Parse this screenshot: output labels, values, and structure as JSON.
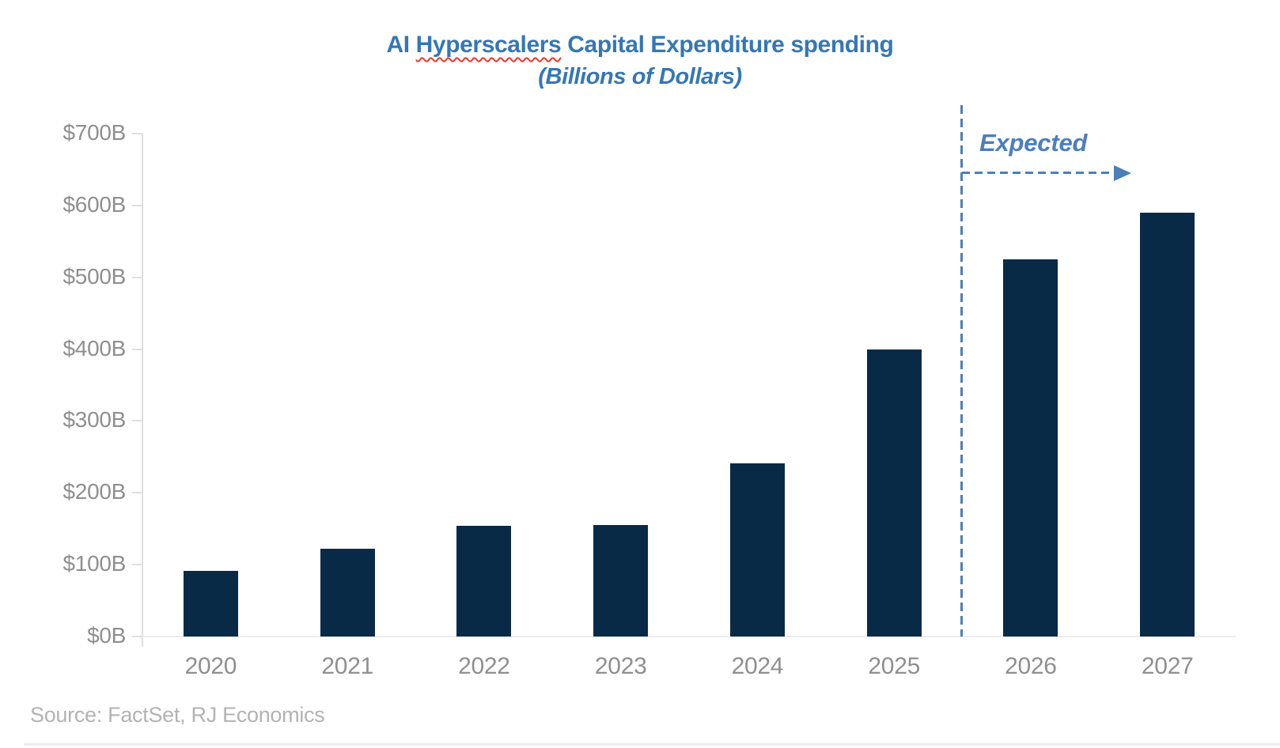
{
  "chart_data": {
    "type": "bar",
    "title": "AI Hyperscalers Capital Expenditure spending",
    "title_parts": {
      "prefix": "AI ",
      "misspelled_word": "Hyperscalers",
      "suffix": " Capital Expenditure spending"
    },
    "subtitle": "(Billions of Dollars)",
    "categories": [
      "2020",
      "2021",
      "2022",
      "2023",
      "2024",
      "2025",
      "2026",
      "2027"
    ],
    "values": [
      91,
      122,
      154,
      155,
      241,
      400,
      525,
      590
    ],
    "series_name": "Capital expenditure ($B)",
    "xlabel": "",
    "ylabel": "",
    "ylim": [
      0,
      700
    ],
    "y_tick_step": 100,
    "y_tick_labels": [
      "$0B",
      "$100B",
      "$200B",
      "$300B",
      "$400B",
      "$500B",
      "$600B",
      "$700B"
    ],
    "grid": false,
    "legend": "none",
    "annotation": {
      "label": "Expected",
      "divider_between": [
        "2025",
        "2026"
      ],
      "applies_to": [
        "2026",
        "2027"
      ]
    },
    "source": "Source: FactSet, RJ Economics",
    "colors": {
      "bar": "#082a47",
      "title": "#3577b5",
      "annotation": "#4b7fba",
      "axis_label": "#8f8f8f",
      "source": "#b3b3b3",
      "squiggle": "#e8392e",
      "axis_line": "#dfdfdf"
    }
  }
}
